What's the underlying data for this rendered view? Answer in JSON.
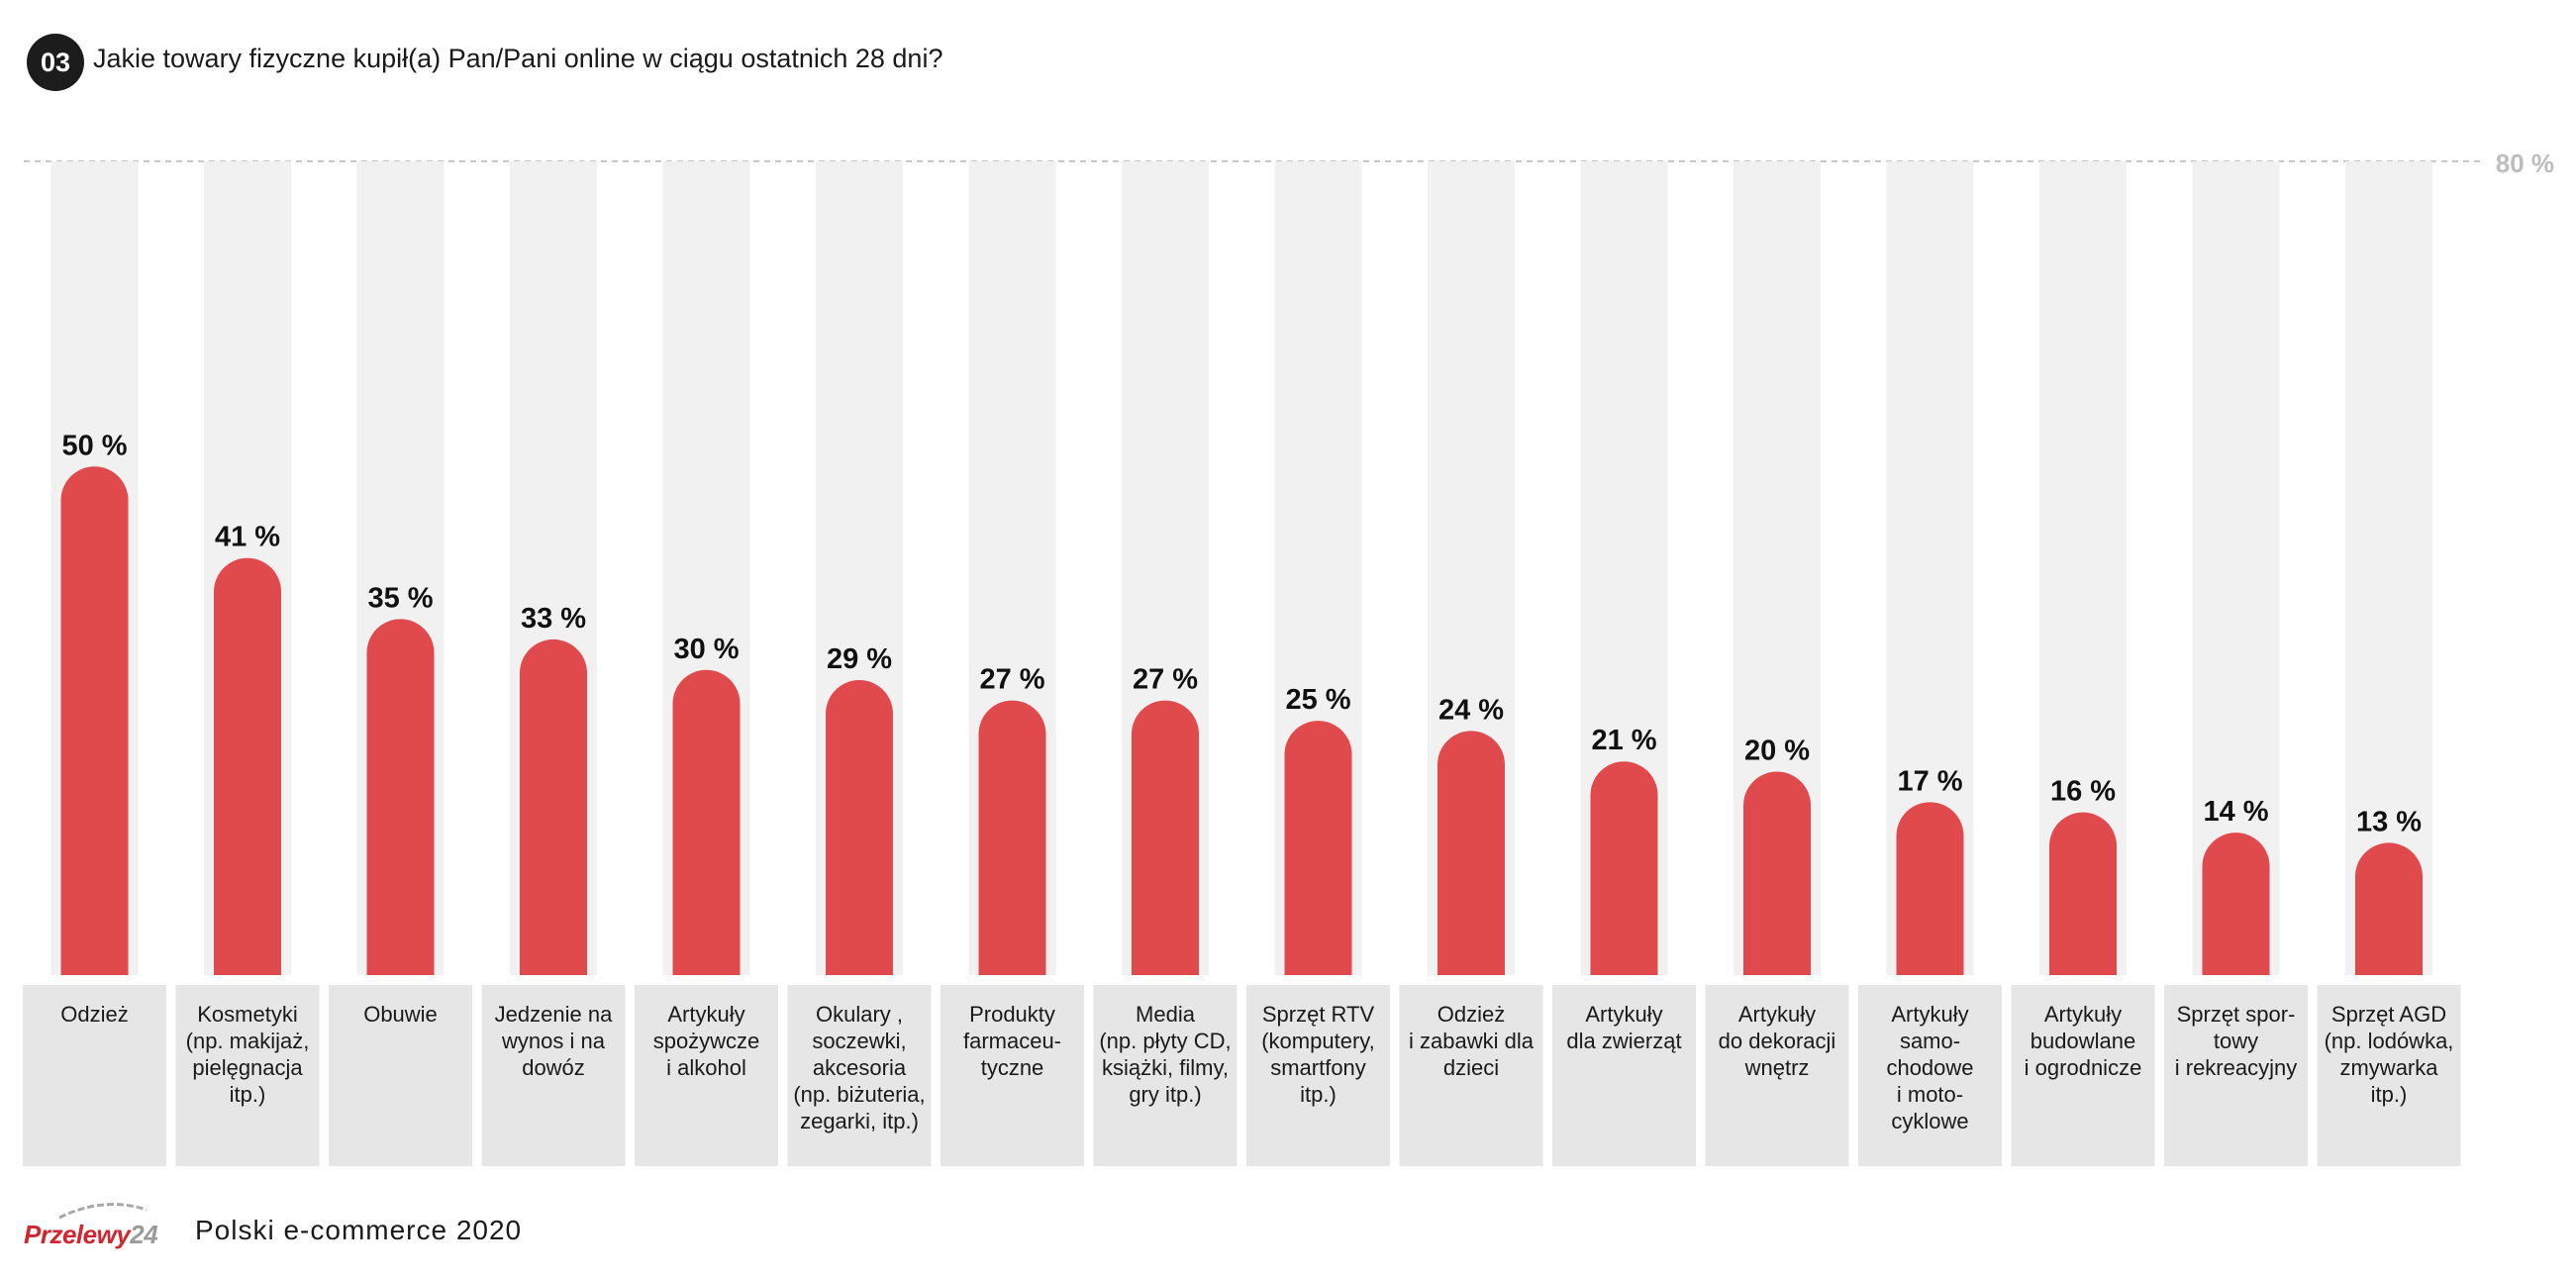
{
  "header": {
    "number": "03",
    "question": "Jakie towary fizyczne kupił(a) Pan/Pani online w ciągu ostatnich 28 dni?"
  },
  "footer": {
    "logo_red": "Przelewy",
    "logo_grey": "24",
    "publication": "Polski e-commerce 2020"
  },
  "colors": {
    "bar": "#e04a4d",
    "track": "#f1f1f1",
    "label_bg": "#e6e6e6",
    "gridline": "#c8c8c8",
    "max_label": "#bdbdbd",
    "badge": "#1c1c1c"
  },
  "chart_data": {
    "type": "bar",
    "title": "Jakie towary fizyczne kupił(a) Pan/Pani online w ciągu ostatnich 28 dni?",
    "ylim": [
      0,
      80
    ],
    "max_label": "80 %",
    "value_suffix": " %",
    "grid": false,
    "categories": [
      [
        "Odzież"
      ],
      [
        "Kosmetyki",
        "(np. makijaż,",
        "pielęgnacja",
        "itp.)"
      ],
      [
        "Obuwie"
      ],
      [
        "Jedzenie na",
        "wynos i na",
        "dowóz"
      ],
      [
        "Artykuły",
        "spożywcze",
        "i alkohol"
      ],
      [
        "Okulary ,",
        "soczewki,",
        "akcesoria",
        "(np. biżuteria,",
        "zegarki, itp.)"
      ],
      [
        "Produkty",
        "farmaceu-",
        "tyczne"
      ],
      [
        "Media",
        "(np. płyty CD,",
        "książki, filmy,",
        "gry itp.)"
      ],
      [
        "Sprzęt RTV",
        "(komputery,",
        "smartfony",
        "itp.)"
      ],
      [
        "Odzież",
        "i zabawki dla",
        "dzieci"
      ],
      [
        "Artykuły",
        "dla zwierząt"
      ],
      [
        "Artykuły",
        "do dekoracji",
        "wnętrz"
      ],
      [
        "Artykuły",
        "samo-",
        "chodowe",
        "i moto-",
        "cyklowe"
      ],
      [
        "Artykuły",
        "budowlane",
        "i ogrodnicze"
      ],
      [
        "Sprzęt spor-",
        "towy",
        "i rekreacyjny"
      ],
      [
        "Sprzęt AGD",
        "(np. lodówka,",
        "zmywarka",
        "itp.)"
      ]
    ],
    "values": [
      50,
      41,
      35,
      33,
      30,
      29,
      27,
      27,
      25,
      24,
      21,
      20,
      17,
      16,
      14,
      13
    ]
  }
}
